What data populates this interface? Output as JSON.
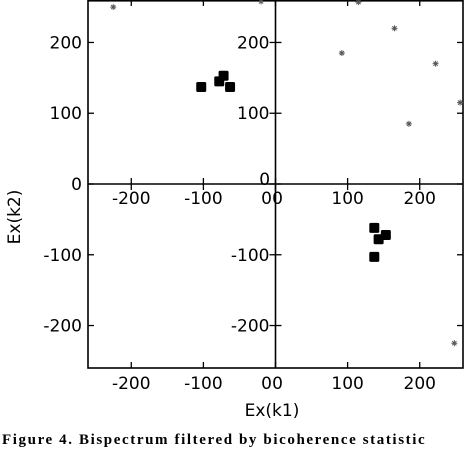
{
  "chart_data": {
    "type": "scatter",
    "xlabel": "Ex(k1)",
    "ylabel": "Ex(k2)",
    "xlim": [
      -260,
      260
    ],
    "ylim": [
      -260,
      260
    ],
    "x_ticks": [
      -200,
      -100,
      0,
      100,
      200
    ],
    "y_ticks": [
      -200,
      -100,
      0,
      100,
      200
    ],
    "grid": false,
    "panels": [
      {
        "name": "top-left",
        "x_ticks": [
          -200,
          -100,
          0
        ],
        "y_ticks": [
          0,
          100,
          200
        ]
      },
      {
        "name": "top-right",
        "x_ticks": [
          0,
          100,
          200
        ],
        "y_ticks": [
          100,
          200
        ]
      },
      {
        "name": "bottom-left",
        "x_ticks": [
          -200,
          -100,
          0
        ],
        "y_ticks": [
          -100,
          -200
        ]
      },
      {
        "name": "bottom-right",
        "x_ticks": [
          0,
          100,
          200
        ],
        "y_ticks": [
          -100,
          -200
        ]
      }
    ],
    "series": [
      {
        "marker": "filled-square",
        "points": [
          [
            -103,
            137
          ],
          [
            -78,
            145
          ],
          [
            -72,
            153
          ],
          [
            -63,
            137
          ],
          [
            137,
            -62
          ],
          [
            143,
            -78
          ],
          [
            153,
            -72
          ],
          [
            137,
            -103
          ]
        ]
      },
      {
        "marker": "star",
        "points": [
          [
            -225,
            250
          ],
          [
            -20,
            258
          ],
          [
            115,
            257
          ],
          [
            92,
            185
          ],
          [
            165,
            220
          ],
          [
            222,
            170
          ],
          [
            256,
            115
          ],
          [
            185,
            85
          ],
          [
            248,
            -225
          ]
        ]
      }
    ],
    "annotations": [
      {
        "text": "0",
        "x": -15,
        "y": 0
      }
    ]
  },
  "caption": "Figure 4. Bispectrum filtered by bicoherence statistic"
}
